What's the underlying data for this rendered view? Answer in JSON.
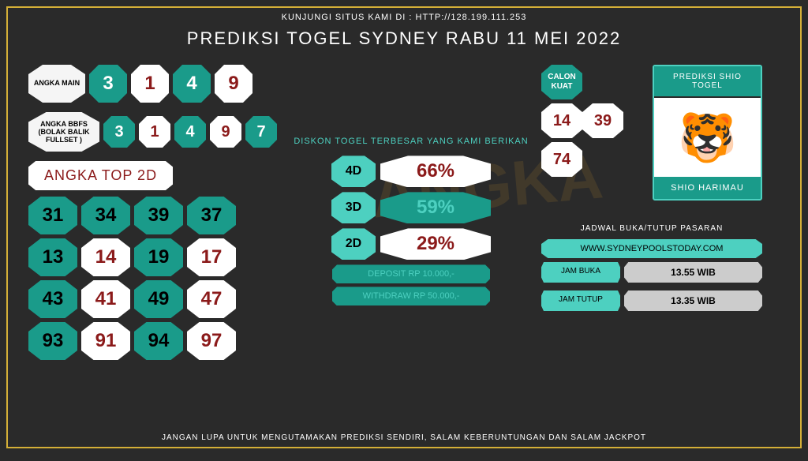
{
  "header_top": "KUNJUNGI SITUS KAMI DI : HTTP://128.199.111.253",
  "title": "PREDIKSI TOGEL SYDNEY RABU 11 MEI 2022",
  "angka_main": {
    "label": "ANGKA MAIN",
    "numbers": [
      "3",
      "1",
      "4",
      "9"
    ],
    "label_bg": "#f5f5f5",
    "num_bg": "#1a9b8a",
    "num_color": "#ffffff"
  },
  "angka_bbfs": {
    "label": "ANGKA BBFS (BOLAK BALIK FULLSET )",
    "numbers": [
      "3",
      "1",
      "4",
      "9",
      "7"
    ],
    "label_bg": "#f5f5f5"
  },
  "angka_top": {
    "label": "ANGKA TOP 2D",
    "cells": [
      {
        "v": "31",
        "c": "teal"
      },
      {
        "v": "34",
        "c": "teal"
      },
      {
        "v": "39",
        "c": "teal"
      },
      {
        "v": "37",
        "c": "teal"
      },
      {
        "v": "13",
        "c": "teal"
      },
      {
        "v": "14",
        "c": "white"
      },
      {
        "v": "19",
        "c": "teal"
      },
      {
        "v": "17",
        "c": "white"
      },
      {
        "v": "43",
        "c": "teal"
      },
      {
        "v": "41",
        "c": "white"
      },
      {
        "v": "49",
        "c": "teal"
      },
      {
        "v": "47",
        "c": "white"
      },
      {
        "v": "93",
        "c": "teal"
      },
      {
        "v": "91",
        "c": "white"
      },
      {
        "v": "94",
        "c": "teal"
      },
      {
        "v": "97",
        "c": "white"
      }
    ],
    "cols": 4
  },
  "diskon": {
    "title": "DISKON TOGEL TERBESAR YANG KAMI BERIKAN",
    "rows": [
      {
        "label": "4D",
        "val": "66%",
        "style": "white"
      },
      {
        "label": "3D",
        "val": "59%",
        "style": "teal"
      },
      {
        "label": "2D",
        "val": "29%",
        "style": "white"
      }
    ],
    "deposit": "DEPOSIT RP 10.000,-",
    "withdraw": "WITHDRAW RP 50.000,-"
  },
  "calon": {
    "label": "CALON KUAT",
    "numbers": [
      "14",
      "39",
      "74"
    ]
  },
  "shio": {
    "title": "PREDIKSI SHIO TOGEL",
    "icon": "🐯",
    "name": "SHIO HARIMAU"
  },
  "jadwal": {
    "title": "JADWAL BUKA/TUTUP PASARAN",
    "site": "WWW.SYDNEYPOOLSTODAY.COM",
    "rows": [
      {
        "label": "JAM BUKA",
        "val": "13.55 WIB"
      },
      {
        "label": "JAM TUTUP",
        "val": "13.35 WIB"
      }
    ]
  },
  "footer": "JANGAN LUPA UNTUK MENGUTAMAKAN PREDIKSI SENDIRI, SALAM KEBERUNTUNGAN DAN SALAM JACKPOT",
  "colors": {
    "teal": "#1a9b8a",
    "cyan": "#4dd0c0",
    "dark_red": "#8b1a1a",
    "border": "#d4af37",
    "bg": "#2a2a2a"
  }
}
